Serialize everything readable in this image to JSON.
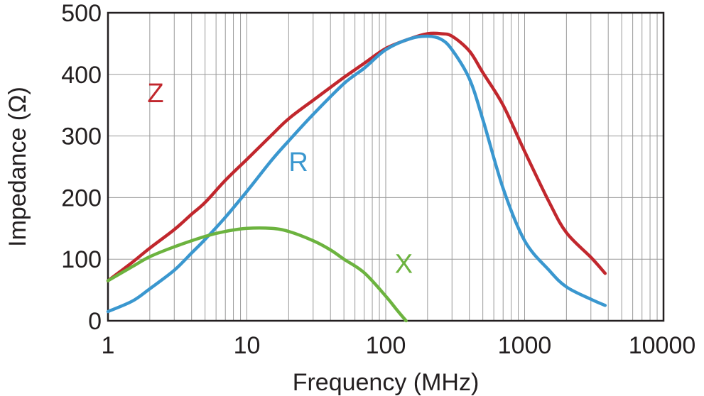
{
  "chart_data": {
    "type": "line",
    "xlabel": "Frequency (MHz)",
    "ylabel": "Impedance (Ω)",
    "xscale": "log",
    "xlim": [
      1,
      10000
    ],
    "ylim": [
      0,
      500
    ],
    "grid": true,
    "x_ticks": [
      1,
      10,
      100,
      1000,
      10000
    ],
    "x_tick_labels": [
      "1",
      "10",
      "100",
      "1000",
      "10000"
    ],
    "y_ticks": [
      0,
      100,
      200,
      300,
      400,
      500
    ],
    "y_tick_labels": [
      "0",
      "100",
      "200",
      "300",
      "400",
      "500"
    ],
    "series": [
      {
        "name": "Z",
        "color": "#c1272d",
        "label_at": [
          2.2,
          355
        ],
        "x": [
          1,
          1.5,
          2,
          3,
          4,
          5,
          7,
          10,
          15,
          20,
          30,
          50,
          70,
          100,
          150,
          200,
          250,
          300,
          400,
          500,
          700,
          1000,
          1500,
          2000,
          3000,
          3800
        ],
        "y": [
          65,
          95,
          118,
          148,
          173,
          192,
          228,
          262,
          301,
          328,
          358,
          395,
          418,
          442,
          458,
          466,
          466,
          462,
          438,
          403,
          350,
          275,
          193,
          143,
          103,
          77
        ]
      },
      {
        "name": "R",
        "color": "#3a97cf",
        "label_at": [
          23.5,
          243
        ],
        "x": [
          1,
          1.5,
          2,
          3,
          4,
          5,
          7,
          10,
          15,
          20,
          30,
          50,
          70,
          100,
          150,
          200,
          250,
          300,
          400,
          500,
          700,
          1000,
          1500,
          2000,
          3000,
          3800
        ],
        "y": [
          15,
          32,
          52,
          82,
          110,
          132,
          168,
          210,
          260,
          292,
          335,
          385,
          410,
          440,
          458,
          462,
          457,
          440,
          393,
          327,
          215,
          130,
          82,
          55,
          35,
          25
        ]
      },
      {
        "name": "X",
        "color": "#6cb33f",
        "label_at": [
          135,
          78
        ],
        "x": [
          1,
          1.5,
          2,
          3,
          5,
          7,
          10,
          15,
          20,
          30,
          40,
          50,
          70,
          100,
          120,
          140
        ],
        "y": [
          65,
          88,
          104,
          120,
          137,
          145,
          150,
          150,
          145,
          130,
          115,
          100,
          78,
          40,
          18,
          0
        ]
      }
    ]
  }
}
